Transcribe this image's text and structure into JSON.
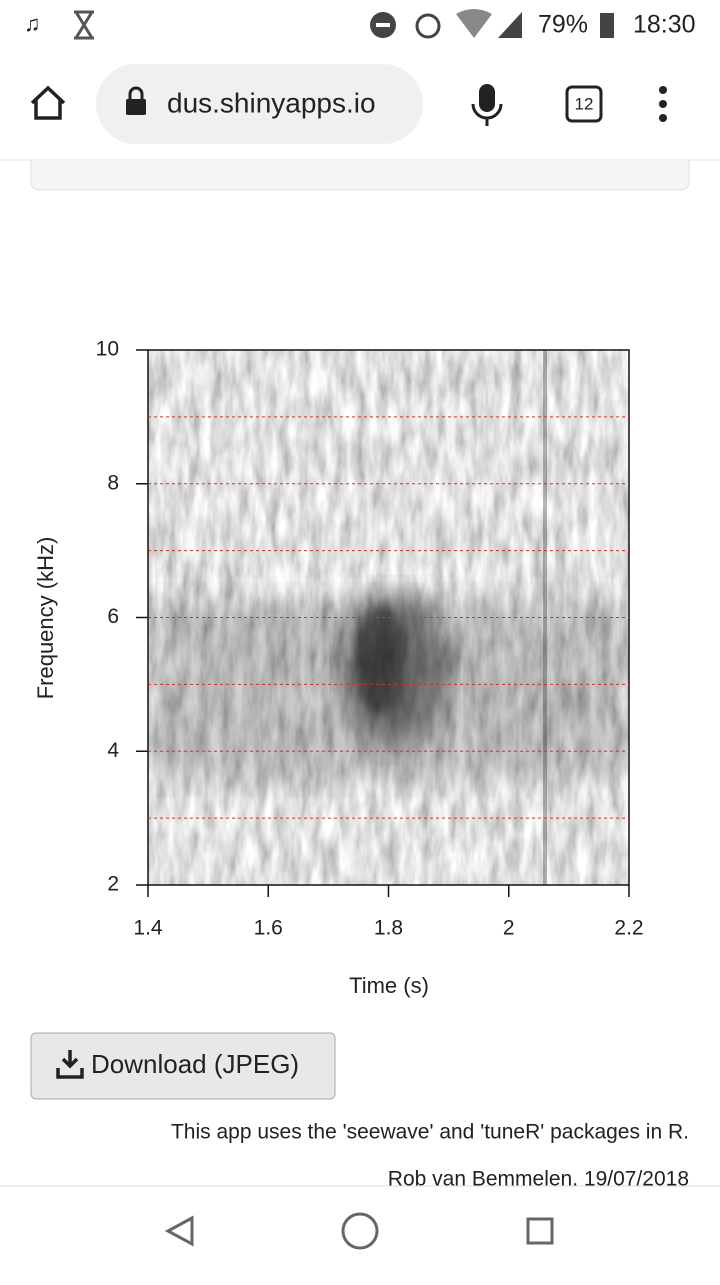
{
  "status_bar": {
    "battery": "79%",
    "time": "18:30"
  },
  "browser": {
    "url": "dus.shinyapps.io",
    "tab_count": "12"
  },
  "chart_data": {
    "type": "spectrogram",
    "x_label": "Time (s)",
    "y_label": "Frequency (kHz)",
    "xlim": [
      1.4,
      2.2
    ],
    "xticks": [
      1.4,
      1.6,
      1.8,
      2,
      2.2
    ],
    "ylim": [
      2,
      10
    ],
    "yticks": [
      2,
      4,
      6,
      8,
      10
    ],
    "grid_y": [
      3,
      4,
      5,
      6,
      7,
      8,
      9
    ],
    "grid_color": "#c0392b"
  },
  "download_button": {
    "label": "Download (JPEG)"
  },
  "footer": {
    "credit": "This app uses the 'seewave' and 'tuneR' packages in R.",
    "author": "Rob van Bemmelen, 19/07/2018"
  }
}
